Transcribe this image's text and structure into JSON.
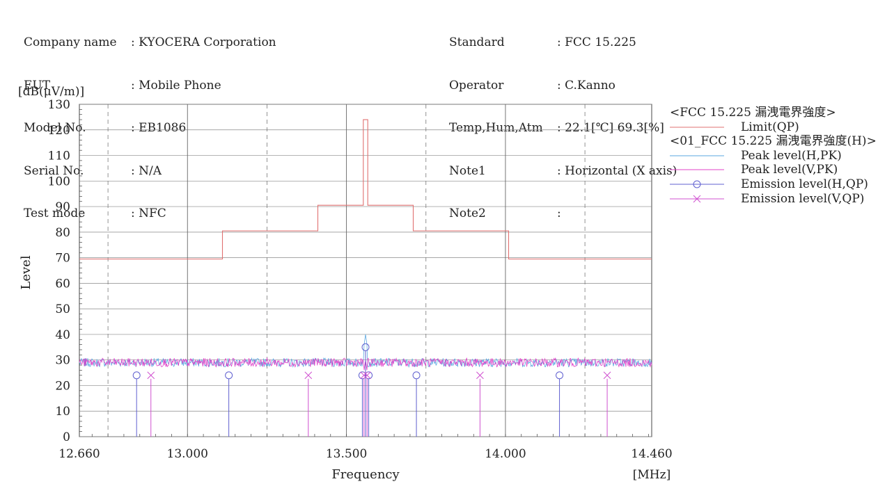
{
  "header": {
    "left": [
      {
        "label": "Company name",
        "value": ": KYOCERA Corporation"
      },
      {
        "label": "EUT",
        "value": ": Mobile Phone"
      },
      {
        "label": "Model No.",
        "value": ": EB1086"
      },
      {
        "label": "Serial No.",
        "value": ": N/A"
      },
      {
        "label": "Test mode",
        "value": ": NFC"
      }
    ],
    "right": [
      {
        "label": "Standard",
        "value": ": FCC 15.225"
      },
      {
        "label": "Operator",
        "value": ": C.Kanno"
      },
      {
        "label": "Temp,Hum,Atm",
        "value": ": 22.1[℃] 69.3[%]"
      },
      {
        "label": "Note1",
        "value": ": Horizontal (X axis)"
      },
      {
        "label": "Note2",
        "value": ":"
      }
    ]
  },
  "colors": {
    "limit": "#e07070",
    "peak_h": "#5aa7e0",
    "peak_v": "#e040c8",
    "emission_h": "#6060d0",
    "emission_v": "#d050d0",
    "grid": "#555555"
  },
  "chart_data": {
    "type": "line",
    "xlabel": "Frequency",
    "xunit": "[MHz]",
    "ylabel": "Level",
    "yunit": "[dB(μV/m)]",
    "xlim": [
      12.66,
      14.46
    ],
    "ylim": [
      0,
      130
    ],
    "xticks": [
      "12.660",
      "13.000",
      "13.500",
      "14.000",
      "14.460"
    ],
    "yticks": [
      0,
      10,
      20,
      30,
      40,
      50,
      60,
      70,
      80,
      90,
      100,
      110,
      120,
      130
    ],
    "grid": true,
    "legend_position": "right",
    "legend": {
      "group1": "<FCC 15.225 漏洩電界強度>",
      "limit": "Limit(QP)",
      "group2": "<01_FCC 15.225 漏洩電界強度(H)>",
      "peak_h": "Peak level(H,PK)",
      "peak_v": "Peak level(V,PK)",
      "emission_h": "Emission level(H,QP)",
      "emission_v": "Emission level(V,QP)"
    },
    "limit_line": {
      "name": "Limit(QP)",
      "x": [
        12.66,
        13.11,
        13.11,
        13.41,
        13.41,
        13.553,
        13.553,
        13.567,
        13.567,
        13.71,
        13.71,
        14.01,
        14.01,
        14.46
      ],
      "y": [
        69.5,
        69.5,
        80.5,
        80.5,
        90.5,
        90.5,
        124,
        124,
        90.5,
        90.5,
        80.5,
        80.5,
        69.5,
        69.5
      ]
    },
    "peak_series": [
      {
        "name": "Peak level(H,PK)",
        "noise_floor": 29,
        "spikes": [
          {
            "x": 13.56,
            "y": 40
          }
        ]
      },
      {
        "name": "Peak level(V,PK)",
        "noise_floor": 29,
        "spikes": [
          {
            "x": 13.56,
            "y": 30
          }
        ]
      }
    ],
    "emission_h": {
      "name": "Emission level(H,QP)",
      "points": [
        [
          12.84,
          24
        ],
        [
          13.13,
          24
        ],
        [
          13.55,
          24
        ],
        [
          13.56,
          35
        ],
        [
          13.57,
          24
        ],
        [
          13.72,
          24
        ],
        [
          14.17,
          24
        ]
      ]
    },
    "emission_v": {
      "name": "Emission level(V,QP)",
      "points": [
        [
          12.885,
          24
        ],
        [
          13.38,
          24
        ],
        [
          13.555,
          24
        ],
        [
          13.565,
          24
        ],
        [
          13.92,
          24
        ],
        [
          14.32,
          24
        ]
      ]
    }
  }
}
